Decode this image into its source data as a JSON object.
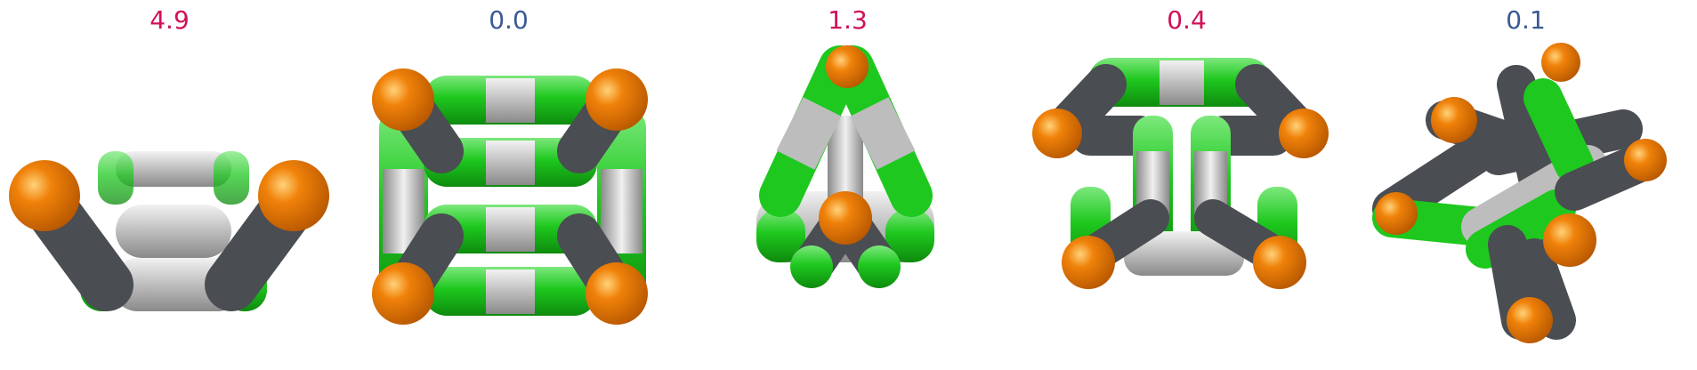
{
  "colors": {
    "red_label": "#d0105a",
    "blue_label": "#3a5a94",
    "green": "#1ec81e",
    "gray": "#9a9a9a",
    "dark": "#4a4d52",
    "orange": "#f0820a"
  },
  "panels": [
    {
      "value": "4.9",
      "color": "#d0105a"
    },
    {
      "value": "0.0",
      "color": "#3a5a94"
    },
    {
      "value": "1.3",
      "color": "#d0105a"
    },
    {
      "value": "0.4",
      "color": "#d0105a"
    },
    {
      "value": "0.1",
      "color": "#3a5a94"
    }
  ]
}
